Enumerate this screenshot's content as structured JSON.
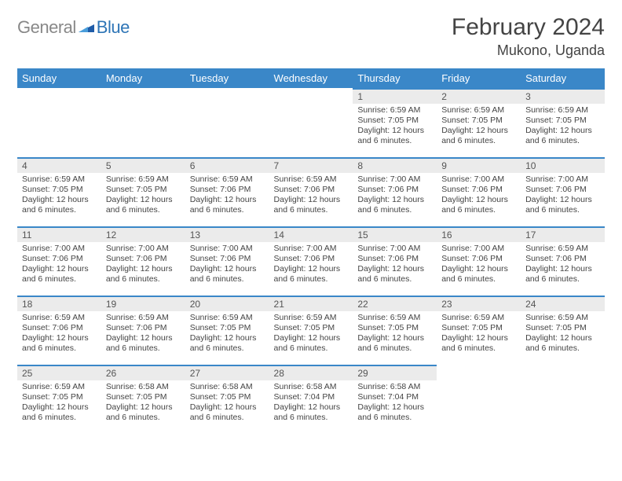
{
  "brand": {
    "general": "General",
    "blue": "Blue",
    "mark_color": "#1f5ca8"
  },
  "header": {
    "month_title": "February 2024",
    "location": "Mukono, Uganda"
  },
  "colors": {
    "header_bar": "#3a87c8",
    "day_stripe": "#ebebeb",
    "day_border_top": "#3a87c8",
    "text": "#444444"
  },
  "week_labels": [
    "Sunday",
    "Monday",
    "Tuesday",
    "Wednesday",
    "Thursday",
    "Friday",
    "Saturday"
  ],
  "days": [
    {
      "n": 1,
      "sr": "6:59 AM",
      "ss": "7:05 PM",
      "dl": "12 hours and 6 minutes."
    },
    {
      "n": 2,
      "sr": "6:59 AM",
      "ss": "7:05 PM",
      "dl": "12 hours and 6 minutes."
    },
    {
      "n": 3,
      "sr": "6:59 AM",
      "ss": "7:05 PM",
      "dl": "12 hours and 6 minutes."
    },
    {
      "n": 4,
      "sr": "6:59 AM",
      "ss": "7:05 PM",
      "dl": "12 hours and 6 minutes."
    },
    {
      "n": 5,
      "sr": "6:59 AM",
      "ss": "7:05 PM",
      "dl": "12 hours and 6 minutes."
    },
    {
      "n": 6,
      "sr": "6:59 AM",
      "ss": "7:06 PM",
      "dl": "12 hours and 6 minutes."
    },
    {
      "n": 7,
      "sr": "6:59 AM",
      "ss": "7:06 PM",
      "dl": "12 hours and 6 minutes."
    },
    {
      "n": 8,
      "sr": "7:00 AM",
      "ss": "7:06 PM",
      "dl": "12 hours and 6 minutes."
    },
    {
      "n": 9,
      "sr": "7:00 AM",
      "ss": "7:06 PM",
      "dl": "12 hours and 6 minutes."
    },
    {
      "n": 10,
      "sr": "7:00 AM",
      "ss": "7:06 PM",
      "dl": "12 hours and 6 minutes."
    },
    {
      "n": 11,
      "sr": "7:00 AM",
      "ss": "7:06 PM",
      "dl": "12 hours and 6 minutes."
    },
    {
      "n": 12,
      "sr": "7:00 AM",
      "ss": "7:06 PM",
      "dl": "12 hours and 6 minutes."
    },
    {
      "n": 13,
      "sr": "7:00 AM",
      "ss": "7:06 PM",
      "dl": "12 hours and 6 minutes."
    },
    {
      "n": 14,
      "sr": "7:00 AM",
      "ss": "7:06 PM",
      "dl": "12 hours and 6 minutes."
    },
    {
      "n": 15,
      "sr": "7:00 AM",
      "ss": "7:06 PM",
      "dl": "12 hours and 6 minutes."
    },
    {
      "n": 16,
      "sr": "7:00 AM",
      "ss": "7:06 PM",
      "dl": "12 hours and 6 minutes."
    },
    {
      "n": 17,
      "sr": "6:59 AM",
      "ss": "7:06 PM",
      "dl": "12 hours and 6 minutes."
    },
    {
      "n": 18,
      "sr": "6:59 AM",
      "ss": "7:06 PM",
      "dl": "12 hours and 6 minutes."
    },
    {
      "n": 19,
      "sr": "6:59 AM",
      "ss": "7:06 PM",
      "dl": "12 hours and 6 minutes."
    },
    {
      "n": 20,
      "sr": "6:59 AM",
      "ss": "7:05 PM",
      "dl": "12 hours and 6 minutes."
    },
    {
      "n": 21,
      "sr": "6:59 AM",
      "ss": "7:05 PM",
      "dl": "12 hours and 6 minutes."
    },
    {
      "n": 22,
      "sr": "6:59 AM",
      "ss": "7:05 PM",
      "dl": "12 hours and 6 minutes."
    },
    {
      "n": 23,
      "sr": "6:59 AM",
      "ss": "7:05 PM",
      "dl": "12 hours and 6 minutes."
    },
    {
      "n": 24,
      "sr": "6:59 AM",
      "ss": "7:05 PM",
      "dl": "12 hours and 6 minutes."
    },
    {
      "n": 25,
      "sr": "6:59 AM",
      "ss": "7:05 PM",
      "dl": "12 hours and 6 minutes."
    },
    {
      "n": 26,
      "sr": "6:58 AM",
      "ss": "7:05 PM",
      "dl": "12 hours and 6 minutes."
    },
    {
      "n": 27,
      "sr": "6:58 AM",
      "ss": "7:05 PM",
      "dl": "12 hours and 6 minutes."
    },
    {
      "n": 28,
      "sr": "6:58 AM",
      "ss": "7:04 PM",
      "dl": "12 hours and 6 minutes."
    },
    {
      "n": 29,
      "sr": "6:58 AM",
      "ss": "7:04 PM",
      "dl": "12 hours and 6 minutes."
    }
  ],
  "labels": {
    "sunrise_prefix": "Sunrise: ",
    "sunset_prefix": "Sunset: ",
    "daylight_prefix": "Daylight: "
  },
  "calendar_layout": {
    "first_day_column_index": 4,
    "days_in_month": 29
  }
}
